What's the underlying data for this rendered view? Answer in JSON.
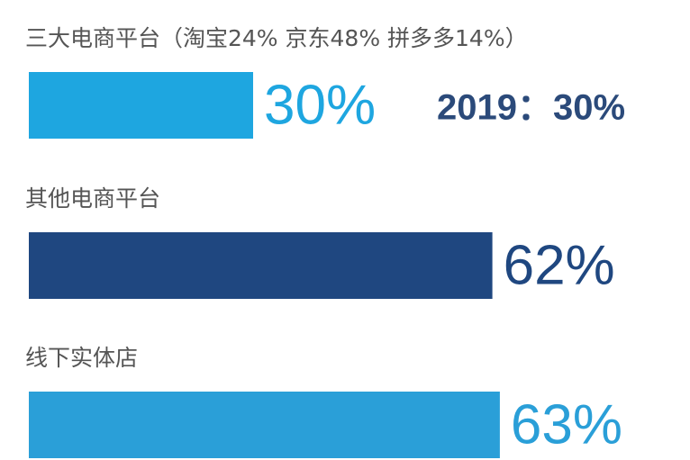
{
  "chart_data": {
    "type": "bar",
    "orientation": "horizontal",
    "categories": [
      "三大电商平台（淘宝24%  京东48%  拼多多14%）",
      "其他电商平台",
      "线下实体店"
    ],
    "values": [
      30,
      62,
      63
    ],
    "value_labels": [
      "30%",
      "62%",
      "63%"
    ],
    "colors": [
      "#1ea6e0",
      "#1f4780",
      "#2a9fd8"
    ],
    "annotation": "2019：30%"
  }
}
